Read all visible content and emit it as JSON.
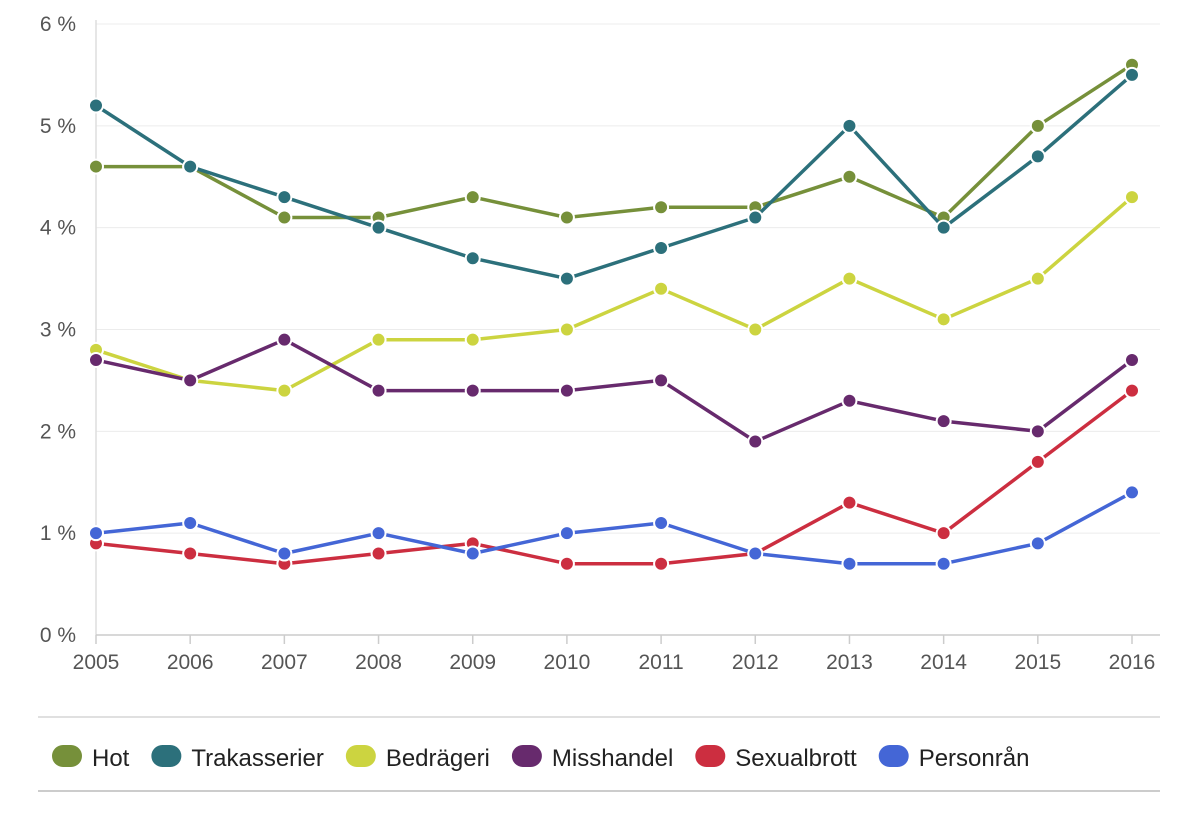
{
  "chart_data": {
    "type": "line",
    "title": "",
    "xlabel": "",
    "ylabel": "",
    "x": [
      "2005",
      "2006",
      "2007",
      "2008",
      "2009",
      "2010",
      "2011",
      "2012",
      "2013",
      "2014",
      "2015",
      "2016"
    ],
    "ylim": [
      0,
      6
    ],
    "yticks": [
      {
        "value": 0,
        "label": "0 %"
      },
      {
        "value": 1,
        "label": "1 %"
      },
      {
        "value": 2,
        "label": "2 %"
      },
      {
        "value": 3,
        "label": "3 %"
      },
      {
        "value": 4,
        "label": "4 %"
      },
      {
        "value": 5,
        "label": "5 %"
      },
      {
        "value": 6,
        "label": "6 %"
      }
    ],
    "grid": true,
    "legend_position": "bottom",
    "series": [
      {
        "name": "Hot",
        "color": "#76903a",
        "values": [
          4.6,
          4.6,
          4.1,
          4.1,
          4.3,
          4.1,
          4.2,
          4.2,
          4.5,
          4.1,
          5.0,
          5.6
        ]
      },
      {
        "name": "Trakasserier",
        "color": "#2c707b",
        "values": [
          5.2,
          4.6,
          4.3,
          4.0,
          3.7,
          3.5,
          3.8,
          4.1,
          5.0,
          4.0,
          4.7,
          5.5
        ]
      },
      {
        "name": "Bedrägeri",
        "color": "#ccd440",
        "values": [
          2.8,
          2.5,
          2.4,
          2.9,
          2.9,
          3.0,
          3.4,
          3.0,
          3.5,
          3.1,
          3.5,
          4.3
        ]
      },
      {
        "name": "Misshandel",
        "color": "#672a6d",
        "values": [
          2.7,
          2.5,
          2.9,
          2.4,
          2.4,
          2.4,
          2.5,
          1.9,
          2.3,
          2.1,
          2.0,
          2.7
        ]
      },
      {
        "name": "Sexualbrott",
        "color": "#cc2e40",
        "values": [
          0.9,
          0.8,
          0.7,
          0.8,
          0.9,
          0.7,
          0.7,
          0.8,
          1.3,
          1.0,
          1.7,
          2.4
        ]
      },
      {
        "name": "Personrån",
        "color": "#4466d6",
        "values": [
          1.0,
          1.1,
          0.8,
          1.0,
          0.8,
          1.0,
          1.1,
          0.8,
          0.7,
          0.7,
          0.9,
          1.4
        ]
      }
    ]
  }
}
